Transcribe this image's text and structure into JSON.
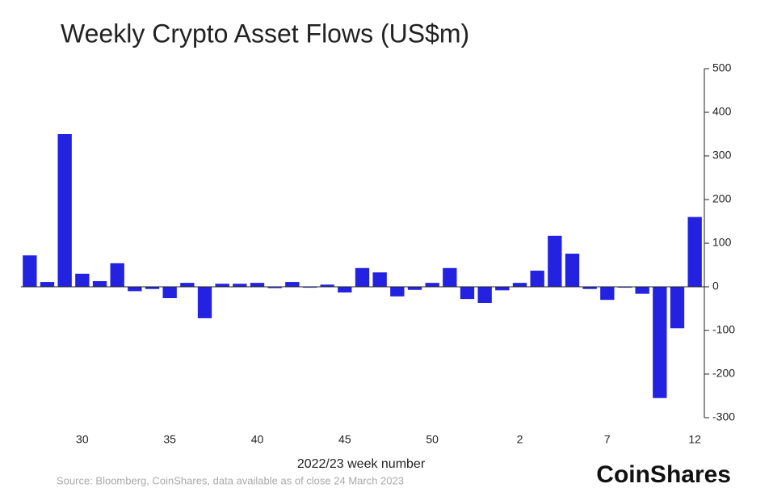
{
  "chart_data": {
    "type": "bar",
    "title": "Weekly Crypto Asset Flows (US$m)",
    "x_label": "2022/23 week number",
    "source": "Source: Bloomberg, CoinShares, data available as of close 24 March 2023",
    "brand": "CoinShares",
    "categories": [
      null,
      null,
      null,
      "30",
      null,
      null,
      null,
      null,
      "35",
      null,
      null,
      null,
      null,
      "40",
      null,
      null,
      null,
      null,
      "45",
      null,
      null,
      null,
      null,
      "50",
      null,
      null,
      null,
      null,
      "2",
      null,
      null,
      null,
      null,
      "7",
      null,
      null,
      null,
      null,
      "12"
    ],
    "values": [
      72,
      11,
      350,
      30,
      13,
      54,
      -10,
      -5,
      -26,
      9,
      -72,
      7,
      7,
      9,
      -3,
      11,
      -2,
      5,
      -13,
      43,
      33,
      -22,
      -7,
      9,
      43,
      -28,
      -37,
      -8,
      9,
      37,
      117,
      76,
      -5,
      -30,
      -2,
      -16,
      -255,
      -95,
      160
    ],
    "color": "#2222e0",
    "ylim": [
      -300,
      500
    ],
    "yticks": [
      -300,
      -200,
      -100,
      0,
      100,
      200,
      300,
      400,
      500
    ]
  }
}
